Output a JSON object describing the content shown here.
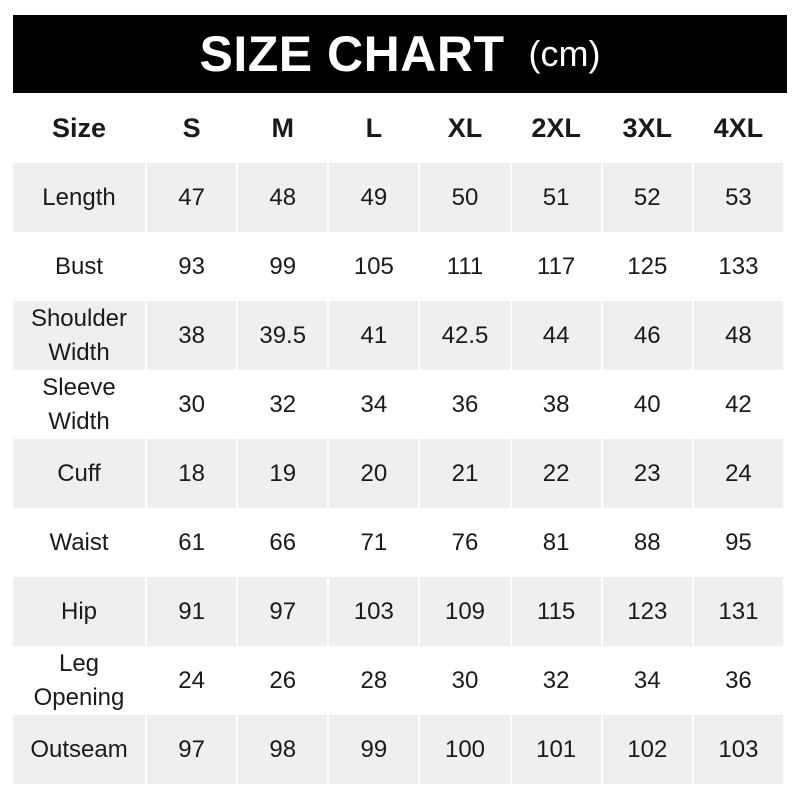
{
  "title": "SIZE CHART",
  "unit": "(cm)",
  "colors": {
    "header_bg": "#000000",
    "stripe_bg": "#efefef"
  },
  "columns": [
    "Size",
    "S",
    "M",
    "L",
    "XL",
    "2XL",
    "3XL",
    "4XL"
  ],
  "rows": [
    {
      "label": [
        "Length"
      ],
      "values": [
        "47",
        "48",
        "49",
        "50",
        "51",
        "52",
        "53"
      ]
    },
    {
      "label": [
        "Bust"
      ],
      "values": [
        "93",
        "99",
        "105",
        "111",
        "117",
        "125",
        "133"
      ]
    },
    {
      "label": [
        "Shoulder",
        "Width"
      ],
      "values": [
        "38",
        "39.5",
        "41",
        "42.5",
        "44",
        "46",
        "48"
      ]
    },
    {
      "label": [
        "Sleeve",
        "Width"
      ],
      "values": [
        "30",
        "32",
        "34",
        "36",
        "38",
        "40",
        "42"
      ]
    },
    {
      "label": [
        "Cuff"
      ],
      "values": [
        "18",
        "19",
        "20",
        "21",
        "22",
        "23",
        "24"
      ]
    },
    {
      "label": [
        "Waist"
      ],
      "values": [
        "61",
        "66",
        "71",
        "76",
        "81",
        "88",
        "95"
      ]
    },
    {
      "label": [
        "Hip"
      ],
      "values": [
        "91",
        "97",
        "103",
        "109",
        "115",
        "123",
        "131"
      ]
    },
    {
      "label": [
        "Leg",
        "Opening"
      ],
      "values": [
        "24",
        "26",
        "28",
        "30",
        "32",
        "34",
        "36"
      ]
    },
    {
      "label": [
        "Outseam"
      ],
      "values": [
        "97",
        "98",
        "99",
        "100",
        "101",
        "102",
        "103"
      ]
    }
  ]
}
